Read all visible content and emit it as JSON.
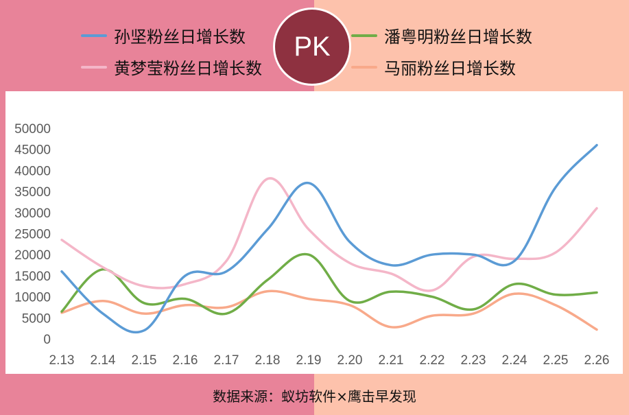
{
  "badge": "PK",
  "source_note": "数据来源：蚁坊软件×鹰击早发现",
  "colors": {
    "bg_left": "#e88399",
    "bg_right": "#fdc2ac",
    "badge": "#8e3140"
  },
  "chart_data": {
    "type": "line",
    "categories": [
      "2.13",
      "2.14",
      "2.15",
      "2.16",
      "2.17",
      "2.18",
      "2.19",
      "2.20",
      "2.21",
      "2.22",
      "2.23",
      "2.24",
      "2.25",
      "2.26"
    ],
    "ylim": [
      0,
      50000
    ],
    "yticks": [
      0,
      5000,
      10000,
      15000,
      20000,
      25000,
      30000,
      35000,
      40000,
      45000,
      50000
    ],
    "grid": false,
    "legend": "top",
    "series": [
      {
        "name": "孙坚粉丝日增长数",
        "color": "#5b9bd5",
        "values": [
          16000,
          6000,
          2000,
          15000,
          16000,
          26000,
          37000,
          23000,
          17500,
          20000,
          20000,
          18500,
          36000,
          46000
        ]
      },
      {
        "name": "黄梦莹粉丝日增长数",
        "color": "#f4b6c8",
        "values": [
          23500,
          17000,
          12500,
          13000,
          18500,
          38000,
          26000,
          18000,
          15500,
          11500,
          19500,
          19000,
          20500,
          31000
        ]
      },
      {
        "name": "潘粤明粉丝日增长数",
        "color": "#70ad47",
        "values": [
          6500,
          16500,
          8500,
          9500,
          6000,
          14000,
          20000,
          9000,
          11200,
          10000,
          7000,
          13000,
          10500,
          11000
        ]
      },
      {
        "name": "马丽粉丝日增长数",
        "color": "#f8a98a",
        "values": [
          6200,
          9000,
          6000,
          8000,
          7500,
          11300,
          9500,
          8000,
          2800,
          5500,
          6000,
          10700,
          8000,
          2200
        ]
      }
    ]
  }
}
